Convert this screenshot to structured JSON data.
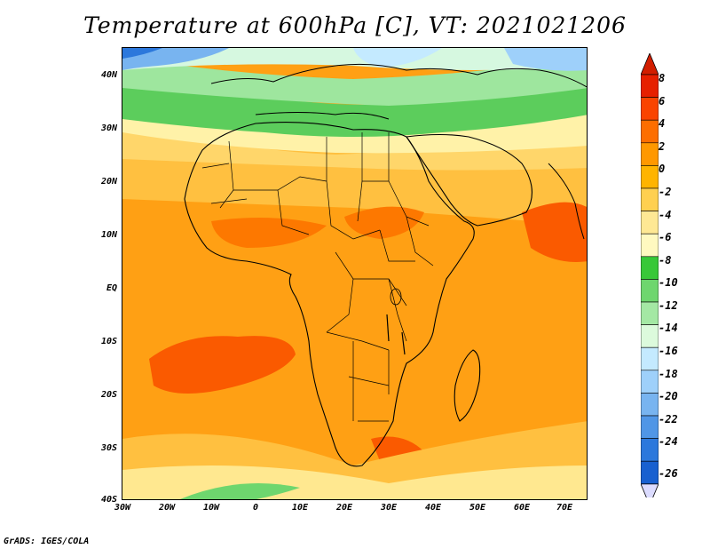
{
  "title": "Temperature at 600hPa [C], VT: 2021021206",
  "footer": "GrADS: IGES/COLA",
  "map": {
    "lon_labels": [
      "30W",
      "20W",
      "10W",
      "0",
      "10E",
      "20E",
      "30E",
      "40E",
      "50E",
      "60E",
      "70E"
    ],
    "lat_labels": [
      "40N",
      "30N",
      "20N",
      "10N",
      "EQ",
      "10S",
      "20S",
      "30S",
      "40S"
    ],
    "lon_range": [
      -30,
      75
    ],
    "lat_range": [
      -40,
      45
    ]
  },
  "colorbar": {
    "labels": [
      "8",
      "6",
      "4",
      "2",
      "0",
      "-2",
      "-4",
      "-6",
      "-8",
      "-10",
      "-12",
      "-14",
      "-16",
      "-18",
      "-20",
      "-22",
      "-24",
      "-26"
    ],
    "colors": [
      "#e62000",
      "#fa4400",
      "#fd6e00",
      "#ff9800",
      "#ffb400",
      "#ffd050",
      "#fee894",
      "#fff9c0",
      "#38c838",
      "#6ed66e",
      "#a4e8a4",
      "#dcfadc",
      "#c4eaff",
      "#9ed0fa",
      "#78b4f0",
      "#5096e6",
      "#2c78dc",
      "#1860d0",
      "#0c46b4",
      "#082890",
      "#00006c"
    ],
    "top_arrow_color": "#d21e00",
    "bottom_arrow_color": "#dcdcff"
  }
}
